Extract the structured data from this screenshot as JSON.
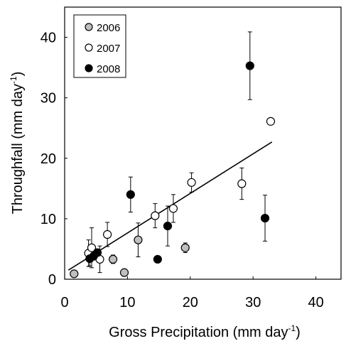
{
  "chart_data": {
    "type": "scatter",
    "xlabel": "Gross Precipitation (mm day",
    "xlabel_sup": "-1",
    "xlabel_close": ")",
    "ylabel": "Throughfall (mm day",
    "ylabel_sup": "-1",
    "ylabel_close": ")",
    "xlim": [
      0,
      44
    ],
    "ylim": [
      0,
      45
    ],
    "xticks": [
      0,
      10,
      20,
      30,
      40
    ],
    "yticks": [
      0,
      10,
      20,
      30,
      40
    ],
    "grid": false,
    "legend_position": "top-left",
    "series": [
      {
        "name": "2006",
        "style": "gray-filled",
        "points": [
          {
            "x": 1.5,
            "y": 0.9
          },
          {
            "x": 7.7,
            "y": 3.3,
            "err": 0.7
          },
          {
            "x": 9.5,
            "y": 1.1
          },
          {
            "x": 11.7,
            "y": 6.5,
            "err": 2.8
          },
          {
            "x": 19.2,
            "y": 5.2,
            "err": 0.8
          }
        ]
      },
      {
        "name": "2007",
        "style": "open",
        "points": [
          {
            "x": 3.8,
            "y": 4.3,
            "err": 2.2
          },
          {
            "x": 4.3,
            "y": 5.2,
            "err": 3.3
          },
          {
            "x": 5.6,
            "y": 3.3,
            "err": 2.2
          },
          {
            "x": 6.8,
            "y": 7.4,
            "err": 2.0
          },
          {
            "x": 14.4,
            "y": 10.5,
            "err": 2.0
          },
          {
            "x": 17.3,
            "y": 11.7,
            "err": 2.3
          },
          {
            "x": 20.2,
            "y": 16.0,
            "err": 1.6
          },
          {
            "x": 28.2,
            "y": 15.8,
            "err": 2.6
          },
          {
            "x": 32.8,
            "y": 26.1
          }
        ]
      },
      {
        "name": "2008",
        "style": "black-filled",
        "points": [
          {
            "x": 4.0,
            "y": 3.4,
            "err": 1.2
          },
          {
            "x": 4.6,
            "y": 3.8
          },
          {
            "x": 5.2,
            "y": 4.4
          },
          {
            "x": 10.5,
            "y": 14.0,
            "err": 2.9
          },
          {
            "x": 14.8,
            "y": 3.3
          },
          {
            "x": 16.4,
            "y": 8.8,
            "err": 3.3
          },
          {
            "x": 29.5,
            "y": 35.3,
            "err": 5.6
          },
          {
            "x": 31.9,
            "y": 10.1,
            "err": 3.8
          }
        ]
      }
    ],
    "trendline": {
      "x": [
        0.6,
        33.0
      ],
      "y": [
        1.5,
        22.7
      ]
    }
  }
}
